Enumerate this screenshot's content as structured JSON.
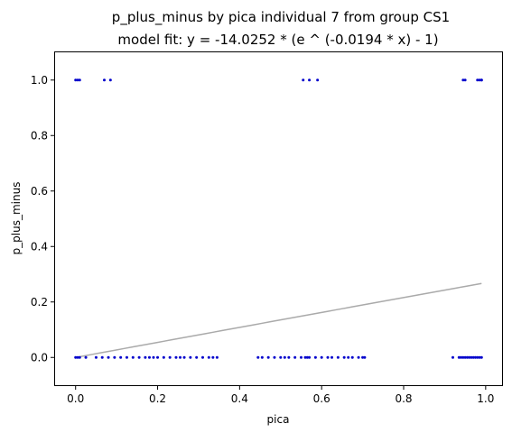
{
  "chart_data": {
    "type": "scatter",
    "title": "p_plus_minus by pica individual 7 from group CS1",
    "subtitle": "model fit: y = -14.0252 * (e ^ (-0.0194 * x) - 1)",
    "xlabel": "pica",
    "ylabel": "p_plus_minus",
    "xlim": [
      -0.05,
      1.04
    ],
    "ylim": [
      -0.1,
      1.1
    ],
    "xticks": [
      0.0,
      0.2,
      0.4,
      0.6,
      0.8,
      1.0
    ],
    "yticks": [
      0.0,
      0.2,
      0.4,
      0.6,
      0.8,
      1.0
    ],
    "xtick_labels": [
      "0.0",
      "0.2",
      "0.4",
      "0.6",
      "0.8",
      "1.0"
    ],
    "ytick_labels": [
      "0.0",
      "0.2",
      "0.4",
      "0.6",
      "0.8",
      "1.0"
    ],
    "grid": false,
    "point_color": "#0000cc",
    "fit_color": "#aaaaaa",
    "points": {
      "x": [
        0.0,
        0.005,
        0.01,
        0.07,
        0.085,
        0.555,
        0.57,
        0.59,
        0.945,
        0.95,
        0.98,
        0.985,
        0.99,
        0.99,
        0.0,
        0.005,
        0.01,
        0.025,
        0.05,
        0.065,
        0.08,
        0.095,
        0.11,
        0.125,
        0.14,
        0.155,
        0.17,
        0.18,
        0.19,
        0.2,
        0.215,
        0.23,
        0.245,
        0.255,
        0.265,
        0.28,
        0.295,
        0.31,
        0.325,
        0.335,
        0.345,
        0.445,
        0.455,
        0.47,
        0.485,
        0.5,
        0.51,
        0.52,
        0.535,
        0.55,
        0.56,
        0.565,
        0.57,
        0.585,
        0.6,
        0.615,
        0.625,
        0.64,
        0.655,
        0.665,
        0.675,
        0.69,
        0.7,
        0.705,
        0.92,
        0.935,
        0.94,
        0.945,
        0.95,
        0.955,
        0.96,
        0.965,
        0.97,
        0.975,
        0.98,
        0.985,
        0.99
      ],
      "y": [
        1,
        1,
        1,
        1,
        1,
        1,
        1,
        1,
        1,
        1,
        1,
        1,
        1,
        1,
        0,
        0,
        0,
        0,
        0,
        0,
        0,
        0,
        0,
        0,
        0,
        0,
        0,
        0,
        0,
        0,
        0,
        0,
        0,
        0,
        0,
        0,
        0,
        0,
        0,
        0,
        0,
        0,
        0,
        0,
        0,
        0,
        0,
        0,
        0,
        0,
        0,
        0,
        0,
        0,
        0,
        0,
        0,
        0,
        0,
        0,
        0,
        0,
        0,
        0,
        0,
        0,
        0,
        0,
        0,
        0,
        0,
        0,
        0,
        0,
        0,
        0,
        0
      ]
    },
    "fit": {
      "a": -14.0252,
      "b": -0.0194,
      "x_range": [
        0.0,
        0.99
      ]
    }
  }
}
